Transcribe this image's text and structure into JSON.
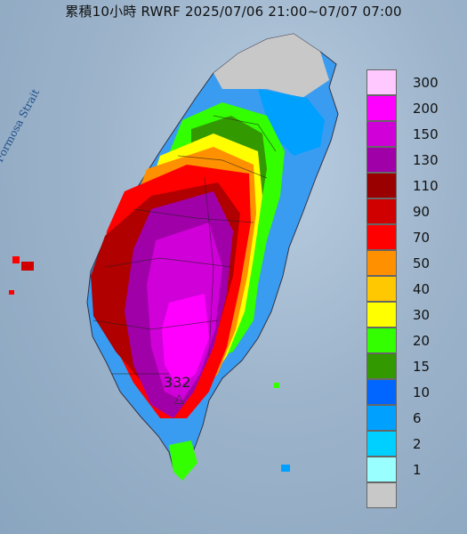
{
  "title": "累積10小時 RWRF 2025/07/06 21:00~07/07 07:00",
  "map_labels": {
    "strait": "Formosa Strait",
    "peak_value": "332",
    "peak_marker": "△"
  },
  "legend": [
    {
      "label": "300",
      "color": "#ffc8ff"
    },
    {
      "label": "200",
      "color": "#ff00ff"
    },
    {
      "label": "150",
      "color": "#d000d8"
    },
    {
      "label": "130",
      "color": "#a000a8"
    },
    {
      "label": "110",
      "color": "#9a0000"
    },
    {
      "label": "90",
      "color": "#d00000"
    },
    {
      "label": "70",
      "color": "#ff0000"
    },
    {
      "label": "50",
      "color": "#ff9000"
    },
    {
      "label": "40",
      "color": "#ffc800"
    },
    {
      "label": "30",
      "color": "#ffff00"
    },
    {
      "label": "20",
      "color": "#33ff00"
    },
    {
      "label": "15",
      "color": "#339900"
    },
    {
      "label": "10",
      "color": "#0066ff"
    },
    {
      "label": "6",
      "color": "#00a0ff"
    },
    {
      "label": "2",
      "color": "#00d0ff"
    },
    {
      "label": "1",
      "color": "#99ffff"
    },
    {
      "label": "",
      "color": "#c8c8c8"
    }
  ]
}
